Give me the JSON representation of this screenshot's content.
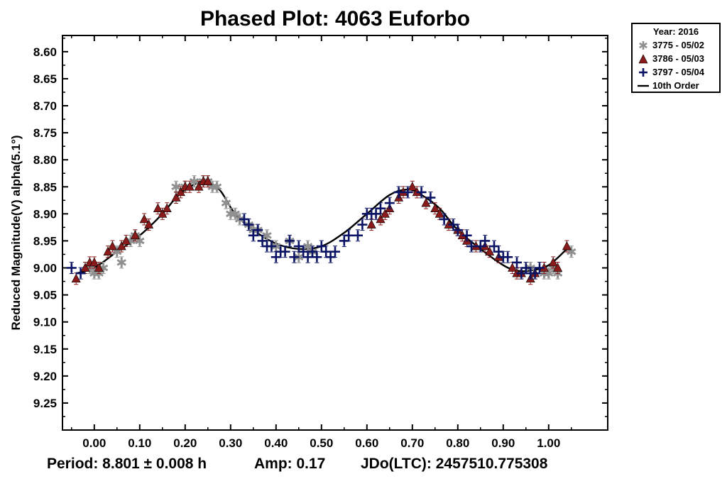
{
  "chart_data": {
    "type": "scatter",
    "title": "Phased Plot: 4063 Euforbo",
    "ylabel": "Reduced Magnitude(V) alpha(5.1°)",
    "xlabel": "",
    "xlim": [
      -0.07,
      1.13
    ],
    "ylim": [
      9.3,
      8.57
    ],
    "y_inverted": true,
    "grid": false,
    "legend_position": "top-right-outside",
    "x_ticks": [
      "0.00",
      "0.10",
      "0.20",
      "0.30",
      "0.40",
      "0.50",
      "0.60",
      "0.70",
      "0.80",
      "0.90",
      "1.00"
    ],
    "x_tick_values": [
      0.0,
      0.1,
      0.2,
      0.3,
      0.4,
      0.5,
      0.6,
      0.7,
      0.8,
      0.9,
      1.0
    ],
    "y_ticks": [
      "8.60",
      "8.65",
      "8.70",
      "8.75",
      "8.80",
      "8.85",
      "8.90",
      "8.95",
      "9.00",
      "9.05",
      "9.10",
      "9.15",
      "9.20",
      "9.25"
    ],
    "y_tick_values": [
      8.6,
      8.65,
      8.7,
      8.75,
      8.8,
      8.85,
      8.9,
      8.95,
      9.0,
      9.05,
      9.1,
      9.15,
      9.2,
      9.25
    ],
    "legend_title": "Year: 2016",
    "series": [
      {
        "name": "3775 - 05/02",
        "marker": "asterisk",
        "color": "#909090",
        "x": [
          -0.01,
          0.0,
          0.01,
          0.02,
          0.05,
          0.06,
          0.08,
          0.09,
          0.1,
          0.18,
          0.2,
          0.22,
          0.24,
          0.25,
          0.26,
          0.27,
          0.29,
          0.3,
          0.31,
          0.32,
          0.34,
          0.35,
          0.36,
          0.38,
          0.4,
          0.43,
          0.45,
          0.47,
          0.48,
          0.96,
          0.99,
          1.0,
          1.01,
          1.02,
          1.05
        ],
        "y": [
          9.0,
          9.01,
          9.01,
          9.0,
          8.97,
          8.99,
          8.95,
          8.94,
          8.95,
          8.85,
          8.85,
          8.84,
          8.84,
          8.84,
          8.85,
          8.85,
          8.88,
          8.9,
          8.9,
          8.91,
          8.92,
          8.93,
          8.93,
          8.94,
          8.96,
          8.95,
          8.98,
          8.96,
          8.97,
          9.0,
          9.01,
          9.01,
          9.0,
          9.01,
          8.97
        ]
      },
      {
        "name": "3786 - 05/03",
        "marker": "triangle",
        "color": "#8b1a1a",
        "x": [
          -0.04,
          -0.02,
          -0.01,
          0.0,
          0.01,
          0.03,
          0.04,
          0.06,
          0.07,
          0.09,
          0.11,
          0.12,
          0.14,
          0.15,
          0.16,
          0.18,
          0.19,
          0.2,
          0.21,
          0.23,
          0.24,
          0.25,
          0.61,
          0.63,
          0.64,
          0.65,
          0.67,
          0.68,
          0.7,
          0.71,
          0.73,
          0.75,
          0.76,
          0.78,
          0.8,
          0.81,
          0.82,
          0.84,
          0.86,
          0.87,
          0.89,
          0.92,
          0.93,
          0.94,
          0.96,
          0.97,
          0.99,
          1.01,
          1.02,
          1.04
        ],
        "y": [
          9.02,
          9.0,
          8.99,
          8.99,
          9.0,
          8.97,
          8.96,
          8.96,
          8.95,
          8.94,
          8.91,
          8.92,
          8.89,
          8.9,
          8.89,
          8.87,
          8.86,
          8.85,
          8.85,
          8.85,
          8.84,
          8.84,
          8.92,
          8.91,
          8.9,
          8.89,
          8.87,
          8.86,
          8.85,
          8.86,
          8.88,
          8.89,
          8.9,
          8.92,
          8.93,
          8.94,
          8.95,
          8.96,
          8.96,
          8.97,
          8.98,
          9.0,
          9.01,
          9.01,
          9.02,
          9.01,
          9.0,
          8.99,
          9.0,
          8.96
        ]
      },
      {
        "name": "3797 - 05/04",
        "marker": "plus",
        "color": "#0b1464",
        "x": [
          -0.05,
          -0.03,
          0.33,
          0.34,
          0.35,
          0.36,
          0.37,
          0.38,
          0.39,
          0.4,
          0.41,
          0.42,
          0.43,
          0.44,
          0.45,
          0.46,
          0.47,
          0.48,
          0.49,
          0.5,
          0.51,
          0.52,
          0.53,
          0.55,
          0.56,
          0.58,
          0.59,
          0.6,
          0.61,
          0.62,
          0.63,
          0.65,
          0.67,
          0.69,
          0.72,
          0.74,
          0.77,
          0.79,
          0.8,
          0.82,
          0.83,
          0.85,
          0.86,
          0.88,
          0.89,
          0.9,
          0.91,
          0.93,
          0.94,
          0.95,
          0.96,
          0.97,
          0.98
        ],
        "y": [
          9.0,
          9.01,
          8.91,
          8.92,
          8.94,
          8.93,
          8.95,
          8.96,
          8.96,
          8.98,
          8.97,
          8.97,
          8.95,
          8.98,
          8.96,
          8.97,
          8.98,
          8.97,
          8.98,
          8.96,
          8.97,
          8.98,
          8.97,
          8.95,
          8.94,
          8.94,
          8.92,
          8.9,
          8.9,
          8.9,
          8.89,
          8.88,
          8.86,
          8.86,
          8.86,
          8.87,
          8.91,
          8.92,
          8.93,
          8.94,
          8.96,
          8.96,
          8.95,
          8.96,
          8.97,
          8.98,
          8.98,
          8.99,
          9.01,
          9.0,
          9.01,
          9.01,
          9.0
        ]
      },
      {
        "name": "10th Order",
        "type": "line",
        "color": "#000000",
        "x": [
          -0.04,
          0.0,
          0.05,
          0.1,
          0.15,
          0.18,
          0.21,
          0.24,
          0.26,
          0.28,
          0.31,
          0.35,
          0.4,
          0.45,
          0.5,
          0.55,
          0.6,
          0.65,
          0.69,
          0.72,
          0.76,
          0.8,
          0.85,
          0.9,
          0.93,
          0.96,
          1.0,
          1.04
        ],
        "y": [
          9.01,
          9.0,
          8.97,
          8.94,
          8.9,
          8.87,
          8.85,
          8.84,
          8.845,
          8.86,
          8.9,
          8.93,
          8.955,
          8.965,
          8.96,
          8.935,
          8.9,
          8.865,
          8.855,
          8.865,
          8.89,
          8.93,
          8.965,
          8.995,
          9.005,
          9.005,
          8.995,
          8.965
        ]
      }
    ]
  },
  "footer": {
    "period": "Period: 8.801 ± 0.008 h",
    "amp": "Amp: 0.17",
    "jdo": "JDo(LTC): 2457510.775308"
  }
}
